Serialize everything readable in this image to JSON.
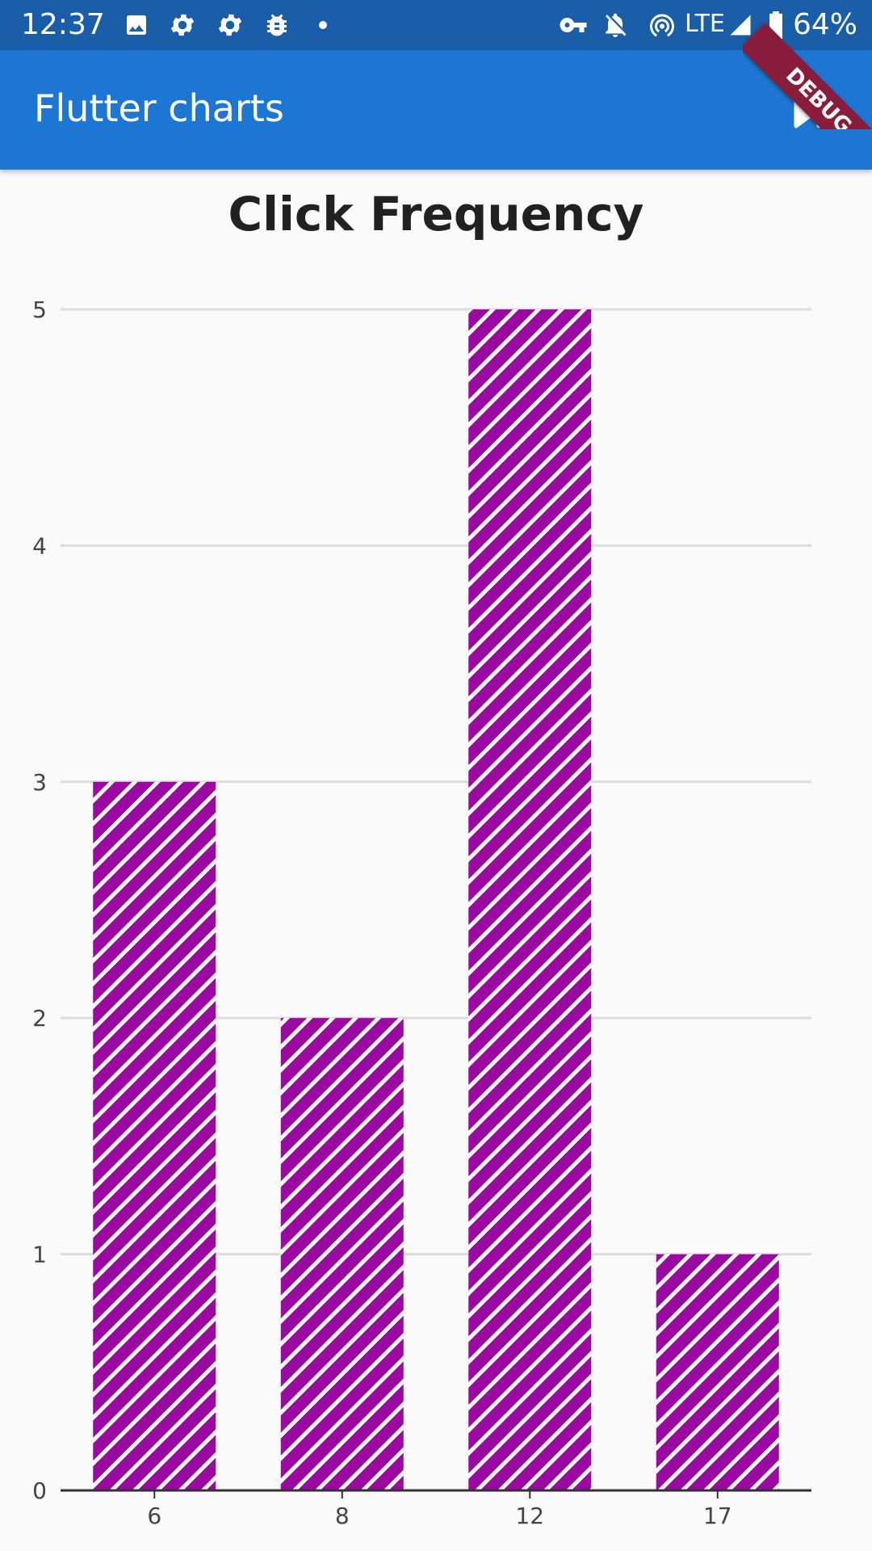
{
  "status_bar": {
    "time": "12:37",
    "network": "LTE",
    "battery": "64%",
    "icons": [
      "image-icon",
      "settings-icon",
      "settings-icon",
      "bug-icon",
      "dot-icon",
      "vpn-key-icon",
      "notifications-off-icon",
      "hotspot-icon",
      "signal-icon",
      "battery-icon"
    ]
  },
  "app_bar": {
    "title": "Flutter charts",
    "action_icon": "fast-forward-icon",
    "debug_banner": "DEBUG",
    "color": "#1d76d2"
  },
  "chart_data": {
    "type": "bar",
    "title": "Click Frequency",
    "categories": [
      "6",
      "8",
      "12",
      "17"
    ],
    "values": [
      3,
      2,
      5,
      1
    ],
    "ylim": [
      0,
      5
    ],
    "yticks": [
      0,
      1,
      2,
      3,
      4,
      5
    ],
    "grid": true,
    "bar_color": "#9a0aa0",
    "pattern": "diagonal-hatch"
  }
}
